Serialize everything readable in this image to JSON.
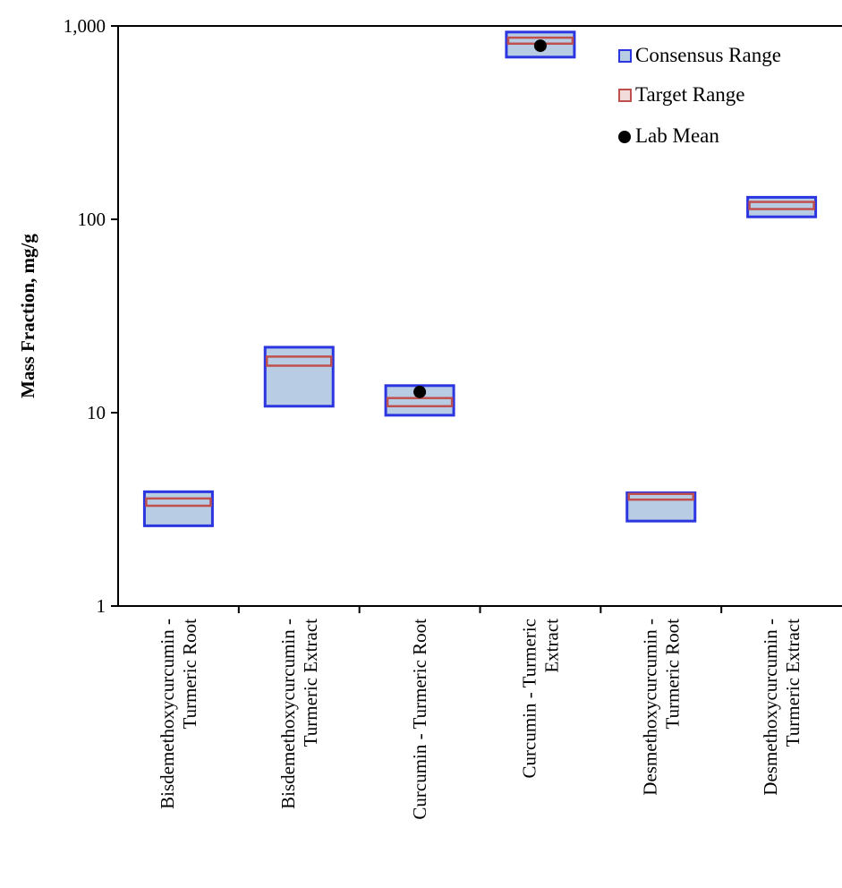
{
  "chart_data": {
    "type": "range",
    "title": "",
    "xlabel": "",
    "ylabel": "Mass Fraction, mg/g",
    "yscale": "log",
    "ylim": [
      1,
      1000
    ],
    "yticks": [
      1,
      10,
      100,
      1000
    ],
    "ytick_labels": [
      "1",
      "10",
      "100",
      "1,000"
    ],
    "grid": false,
    "legend_position": "top-right",
    "legend": [
      {
        "label": "Consensus Range",
        "kind": "consensus"
      },
      {
        "label": "Target Range",
        "kind": "target"
      },
      {
        "label": "Lab Mean",
        "kind": "lab_mean"
      }
    ],
    "categories": [
      [
        "Bisdemethoxycurcumin -",
        "Turmeric Root"
      ],
      [
        "Bisdemethoxycurcumin -",
        "Turmeric Extract"
      ],
      [
        "Curcumin - Turmeric Root"
      ],
      [
        "Curcumin - Turmeric",
        "Extract"
      ],
      [
        "Desmethoxycurcumin -",
        "Turmeric Root"
      ],
      [
        "Desmethoxycurcumin -",
        "Turmeric Extract"
      ]
    ],
    "series": [
      {
        "name": "Consensus Range",
        "values": [
          [
            2.6,
            3.9
          ],
          [
            10.8,
            21.8
          ],
          [
            9.7,
            13.8
          ],
          [
            690,
            930
          ],
          [
            2.75,
            3.85
          ],
          [
            103,
            130
          ]
        ]
      },
      {
        "name": "Target Range",
        "values": [
          [
            3.3,
            3.6
          ],
          [
            17.5,
            19.5
          ],
          [
            10.8,
            11.9
          ],
          [
            810,
            870
          ],
          [
            3.55,
            3.8
          ],
          [
            113,
            123
          ]
        ]
      },
      {
        "name": "Lab Mean",
        "values": [
          null,
          null,
          12.8,
          790,
          null,
          null
        ]
      }
    ],
    "colors": {
      "consensus_fill": "#b8cce4",
      "consensus_stroke": "#2b35e0",
      "target_stroke": "#c0504d",
      "lab_mean": "#000000"
    }
  }
}
